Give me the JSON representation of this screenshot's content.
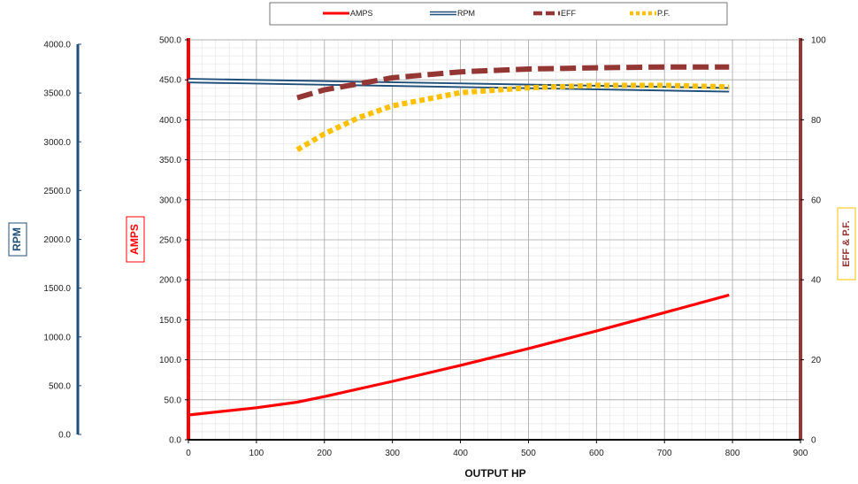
{
  "chart_data": {
    "type": "line",
    "xlabel": "OUTPUT HP",
    "x_ticks": [
      "0",
      "100",
      "200",
      "300",
      "400",
      "500",
      "600",
      "700",
      "800",
      "900"
    ],
    "xlim": [
      0,
      900
    ],
    "axes": {
      "rpm": {
        "label": "RPM",
        "ylim": [
          0,
          4000
        ],
        "ticks": [
          "0.0",
          "500.0",
          "1000.0",
          "1500.0",
          "2000.0",
          "2500.0",
          "3000.0",
          "3500.0",
          "4000.0"
        ],
        "color": "#1f4e79"
      },
      "amps": {
        "label": "AMPS",
        "ylim": [
          0,
          500
        ],
        "ticks": [
          "0.0",
          "50.0",
          "100.0",
          "150.0",
          "200.0",
          "250.0",
          "300.0",
          "350.0",
          "400.0",
          "450.0",
          "500.0"
        ],
        "color": "#ff0000"
      },
      "eff_pf": {
        "label": "EFF & P.F.",
        "ylim": [
          0,
          100
        ],
        "ticks": [
          "0",
          "20",
          "40",
          "60",
          "80",
          "100"
        ],
        "color": "#943634"
      }
    },
    "series": [
      {
        "name": "AMPS",
        "axis": "amps",
        "color": "#ff0000",
        "style": "solid",
        "x": [
          0,
          100,
          160,
          200,
          300,
          400,
          500,
          600,
          700,
          795
        ],
        "y": [
          31,
          40,
          47,
          54,
          73,
          93,
          114,
          136,
          159,
          181
        ]
      },
      {
        "name": "RPM",
        "axis": "rpm",
        "color": "#1f4e79",
        "style": "double",
        "x": [
          0,
          795
        ],
        "y": [
          3592,
          3500
        ]
      },
      {
        "name": "EFF",
        "axis": "eff_pf",
        "color": "#943634",
        "style": "dashed",
        "x": [
          160,
          200,
          300,
          400,
          500,
          600,
          700,
          795
        ],
        "y": [
          85.5,
          87.5,
          90.5,
          92,
          92.7,
          93.0,
          93.2,
          93.2
        ]
      },
      {
        "name": "P.F.",
        "axis": "eff_pf",
        "color": "#ffc000",
        "style": "dotted",
        "x": [
          160,
          200,
          250,
          300,
          400,
          500,
          600,
          700,
          795
        ],
        "y": [
          72.5,
          76.5,
          80.5,
          83.5,
          86.8,
          88.0,
          88.6,
          88.6,
          88.2
        ]
      }
    ],
    "legend_position": "top-center",
    "grid": true
  }
}
